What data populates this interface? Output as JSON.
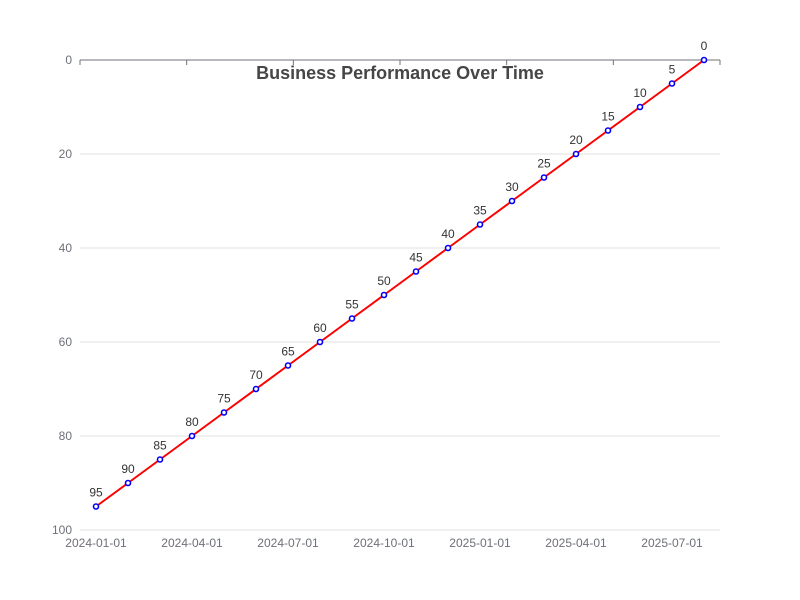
{
  "chart_data": {
    "type": "line",
    "title": "Business Performance Over Time",
    "xlabel": "",
    "ylabel": "",
    "x": [
      "2024-01-01",
      "2024-02-01",
      "2024-03-01",
      "2024-04-01",
      "2024-05-01",
      "2024-06-01",
      "2024-07-01",
      "2024-08-01",
      "2024-09-01",
      "2024-10-01",
      "2024-11-01",
      "2024-12-01",
      "2025-01-01",
      "2025-02-01",
      "2025-03-01",
      "2025-04-01",
      "2025-05-01",
      "2025-06-01",
      "2025-07-01",
      "2025-08-01"
    ],
    "values": [
      95,
      90,
      85,
      80,
      75,
      70,
      65,
      60,
      55,
      50,
      45,
      40,
      35,
      30,
      25,
      20,
      15,
      10,
      5,
      0
    ],
    "x_tick_labels": [
      "2024-01-01",
      "2024-04-01",
      "2024-07-01",
      "2024-10-01",
      "2025-01-01",
      "2025-04-01",
      "2025-07-01"
    ],
    "y_tick_labels": [
      "0",
      "20",
      "40",
      "60",
      "80",
      "100"
    ],
    "ylim": [
      0,
      100
    ],
    "y_inverted": true,
    "grid": "horizontal",
    "line_color": "#ff0000",
    "marker_color": "#0000ff"
  }
}
